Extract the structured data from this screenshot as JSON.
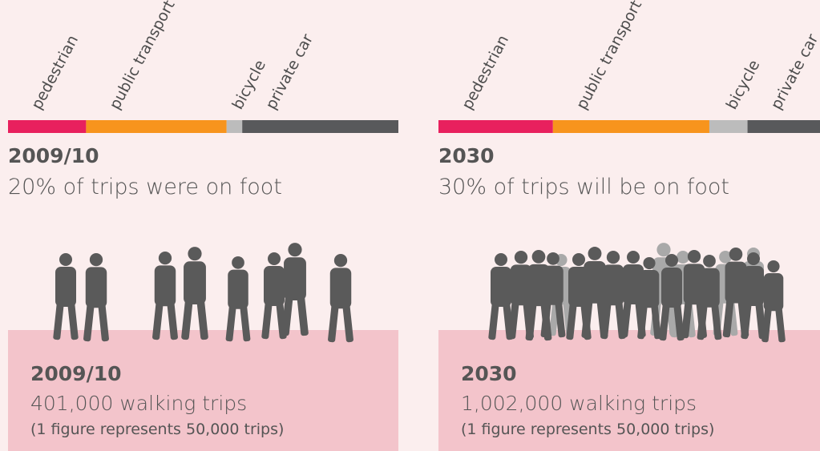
{
  "chart_data": [
    {
      "type": "bar",
      "orientation": "horizontal",
      "stacked": true,
      "title": "2009/10",
      "subtitle": "20% of trips were on foot",
      "xlim": [
        0,
        100
      ],
      "series": [
        {
          "name": "pedestrian",
          "color": "#e8205e",
          "values": [
            20
          ]
        },
        {
          "name": "public transport",
          "color": "#f7941d",
          "values": [
            36
          ]
        },
        {
          "name": "bicycle",
          "color": "#bcbcbc",
          "values": [
            4
          ]
        },
        {
          "name": "private car",
          "color": "#58595b",
          "values": [
            40
          ]
        }
      ]
    },
    {
      "type": "bar",
      "orientation": "horizontal",
      "stacked": true,
      "title": "2030",
      "subtitle": "30% of trips will be on foot",
      "xlim": [
        0,
        100
      ],
      "series": [
        {
          "name": "pedestrian",
          "color": "#e8205e",
          "values": [
            30
          ]
        },
        {
          "name": "public transport",
          "color": "#f7941d",
          "values": [
            41
          ]
        },
        {
          "name": "bicycle",
          "color": "#bcbcbc",
          "values": [
            10
          ]
        },
        {
          "name": "private car",
          "color": "#58595b",
          "values": [
            19
          ]
        }
      ]
    }
  ],
  "panels": [
    {
      "title": "2009/10",
      "text": "401,000 walking trips",
      "note": "(1 figure represents 50,000 trips)"
    },
    {
      "title": "2030",
      "text": "1,002,000 walking trips",
      "note": "(1 figure represents 50,000 trips)"
    }
  ]
}
